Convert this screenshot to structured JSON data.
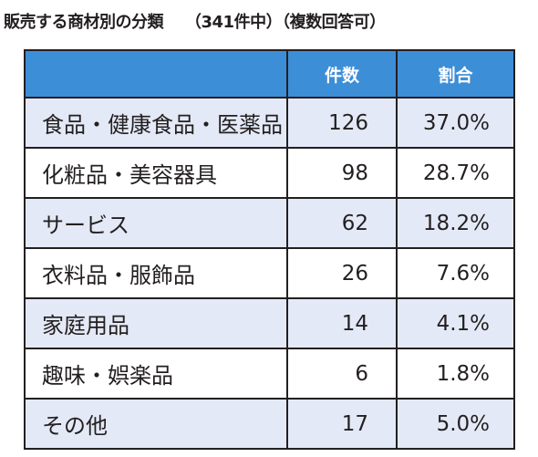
{
  "caption": {
    "title": "販売する商材別の分類",
    "subtitle": "（341件中）（複数回答可）"
  },
  "table": {
    "columns": [
      "",
      "件数",
      "割合"
    ],
    "rows": [
      {
        "label": "食品・健康食品・医薬品",
        "count": "126",
        "percent": "37.0%"
      },
      {
        "label": "化粧品・美容器具",
        "count": "98",
        "percent": "28.7%"
      },
      {
        "label": "サービス",
        "count": "62",
        "percent": "18.2%"
      },
      {
        "label": "衣料品・服飾品",
        "count": "26",
        "percent": "7.6%"
      },
      {
        "label": "家庭用品",
        "count": "14",
        "percent": "4.1%"
      },
      {
        "label": "趣味・娯楽品",
        "count": "6",
        "percent": "1.8%"
      },
      {
        "label": "その他",
        "count": "17",
        "percent": "5.0%"
      }
    ]
  },
  "colors": {
    "header_bg": "#3c8ed7",
    "header_text": "#ffffff",
    "shaded_row_bg": "#e3e9f6",
    "plain_row_bg": "#ffffff",
    "border": "#231f20"
  }
}
